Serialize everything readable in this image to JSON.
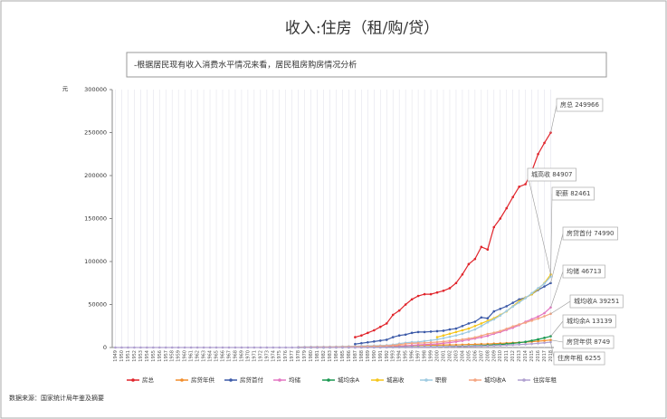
{
  "chart_data": {
    "type": "line",
    "title": "收入:住房（租/购/贷）",
    "subtitle": "-根据居民现有收入消费水平情况来看，居民租房购房情况分析",
    "y_label": "元",
    "source": "数据来源：国家统计局年鉴及摘要",
    "ylim": [
      0,
      300000
    ],
    "yticks": [
      0,
      50000,
      100000,
      150000,
      200000,
      250000,
      300000
    ],
    "categories": [
      "1949",
      "1950",
      "1951",
      "1952",
      "1953",
      "1954",
      "1955",
      "1956",
      "1957",
      "1958",
      "1959",
      "1960",
      "1961",
      "1962",
      "1963",
      "1964",
      "1965",
      "1966",
      "1967",
      "1968",
      "1969",
      "1970",
      "1971",
      "1972",
      "1973",
      "1974",
      "1975",
      "1976",
      "1977",
      "1978",
      "1979",
      "1980",
      "1981",
      "1982",
      "1983",
      "1984",
      "1985",
      "1986",
      "1987",
      "1988",
      "1989",
      "1990",
      "1991",
      "1992",
      "1993",
      "1994",
      "1995",
      "1996",
      "1997",
      "1998",
      "1999",
      "2000",
      "2001",
      "2002",
      "2003",
      "2004",
      "2005",
      "2006",
      "2007",
      "2008",
      "2009",
      "2010",
      "2011",
      "2012",
      "2013",
      "2014",
      "2015",
      "2016",
      "2017",
      "2018"
    ],
    "series": [
      {
        "name": "房总",
        "color": "#e0242b",
        "end_label": "房总 249966",
        "values": [
          null,
          null,
          null,
          null,
          null,
          null,
          null,
          null,
          null,
          null,
          null,
          null,
          null,
          null,
          null,
          null,
          null,
          null,
          null,
          null,
          null,
          null,
          null,
          null,
          null,
          null,
          null,
          null,
          null,
          null,
          null,
          null,
          null,
          null,
          null,
          null,
          null,
          null,
          12000,
          14000,
          17000,
          20000,
          24000,
          28000,
          38000,
          43000,
          50000,
          56000,
          60000,
          62000,
          62000,
          64000,
          66000,
          69000,
          75000,
          85000,
          97000,
          103000,
          117000,
          114000,
          140000,
          150000,
          162000,
          175000,
          187000,
          190000,
          205000,
          225000,
          238000,
          249966
        ]
      },
      {
        "name": "房贷年供",
        "color": "#f28e2b",
        "end_label": "房贷年供 8749",
        "values": [
          null,
          null,
          null,
          null,
          null,
          null,
          null,
          null,
          null,
          null,
          null,
          null,
          null,
          null,
          null,
          null,
          null,
          null,
          null,
          null,
          null,
          null,
          null,
          null,
          null,
          null,
          null,
          null,
          null,
          null,
          null,
          null,
          null,
          null,
          null,
          null,
          null,
          null,
          700,
          800,
          900,
          1000,
          1100,
          1300,
          1700,
          1900,
          2100,
          2300,
          2500,
          2600,
          2700,
          2800,
          2900,
          3000,
          3100,
          3300,
          3600,
          3700,
          4000,
          4100,
          4500,
          4800,
          5100,
          5500,
          5900,
          6300,
          6800,
          7400,
          8000,
          8749
        ]
      },
      {
        "name": "房贷首付",
        "color": "#3c5aa8",
        "end_label": "房贷首付 74990",
        "values": [
          null,
          null,
          null,
          null,
          null,
          null,
          null,
          null,
          null,
          null,
          null,
          null,
          null,
          null,
          null,
          null,
          null,
          null,
          null,
          null,
          null,
          null,
          null,
          null,
          null,
          null,
          null,
          null,
          null,
          null,
          null,
          null,
          null,
          null,
          null,
          null,
          null,
          null,
          4000,
          5000,
          6000,
          7000,
          8000,
          9000,
          12000,
          14000,
          15000,
          17000,
          18000,
          18000,
          18500,
          19000,
          19500,
          21000,
          22000,
          25000,
          28000,
          30000,
          35000,
          34000,
          42000,
          45000,
          48000,
          52000,
          56000,
          58000,
          62000,
          67000,
          71000,
          74990
        ]
      },
      {
        "name": "均储",
        "color": "#e377c2",
        "end_label": "均储 46713",
        "values": [
          null,
          null,
          null,
          null,
          null,
          null,
          null,
          null,
          null,
          null,
          null,
          null,
          null,
          null,
          null,
          null,
          null,
          null,
          null,
          null,
          null,
          null,
          null,
          null,
          null,
          null,
          null,
          null,
          null,
          null,
          null,
          null,
          null,
          null,
          null,
          null,
          null,
          null,
          null,
          null,
          null,
          null,
          600,
          800,
          1000,
          1300,
          1800,
          2500,
          3100,
          3500,
          3800,
          4200,
          5000,
          5800,
          6700,
          7800,
          9000,
          10500,
          12000,
          13500,
          16000,
          18000,
          20500,
          23000,
          26000,
          30000,
          33000,
          36000,
          40000,
          46713
        ]
      },
      {
        "name": "城均余A",
        "color": "#1a9850",
        "end_label": "城均余A 13139",
        "values": [
          null,
          null,
          null,
          null,
          null,
          null,
          null,
          null,
          null,
          null,
          null,
          null,
          null,
          null,
          null,
          null,
          null,
          null,
          null,
          null,
          null,
          null,
          null,
          null,
          null,
          null,
          null,
          null,
          null,
          32,
          40,
          50,
          50,
          60,
          60,
          80,
          90,
          110,
          130,
          150,
          170,
          200,
          220,
          270,
          340,
          450,
          540,
          620,
          680,
          750,
          830,
          900,
          1000,
          1150,
          1300,
          1500,
          1700,
          1950,
          2300,
          2700,
          3100,
          3500,
          4100,
          4800,
          5600,
          6600,
          8000,
          9500,
          11200,
          13139
        ]
      },
      {
        "name": "城高收",
        "color": "#f5c518",
        "end_label": "城高收 84907",
        "values": [
          null,
          null,
          null,
          null,
          null,
          null,
          null,
          null,
          null,
          null,
          null,
          null,
          null,
          null,
          null,
          null,
          null,
          null,
          null,
          null,
          null,
          null,
          null,
          null,
          null,
          null,
          null,
          null,
          null,
          null,
          null,
          null,
          null,
          null,
          null,
          null,
          null,
          null,
          null,
          null,
          null,
          null,
          null,
          null,
          null,
          null,
          null,
          null,
          null,
          null,
          null,
          12000,
          14000,
          16000,
          18000,
          20000,
          22000,
          25000,
          28000,
          31000,
          34000,
          38000,
          42000,
          48000,
          54000,
          58000,
          62000,
          68000,
          75000,
          84907
        ]
      },
      {
        "name": "职薪",
        "color": "#9ecae1",
        "end_label": "职薪 82461",
        "values": [
          null,
          null,
          null,
          null,
          null,
          null,
          null,
          null,
          null,
          null,
          null,
          null,
          null,
          null,
          null,
          null,
          null,
          null,
          null,
          null,
          null,
          null,
          null,
          null,
          null,
          null,
          null,
          null,
          null,
          615,
          668,
          762,
          772,
          798,
          826,
          974,
          1148,
          1329,
          1459,
          1747,
          1935,
          2140,
          2340,
          2711,
          3371,
          4538,
          5500,
          6210,
          6470,
          7479,
          8346,
          9371,
          10870,
          12422,
          14040,
          16024,
          18364,
          21001,
          24932,
          29229,
          32736,
          37147,
          42452,
          47593,
          52388,
          57361,
          63241,
          68993,
          74318,
          82461
        ]
      },
      {
        "name": "城均收A",
        "color": "#f4a582",
        "end_label": "城均收A 39251",
        "values": [
          null,
          null,
          null,
          null,
          null,
          null,
          null,
          null,
          null,
          null,
          null,
          null,
          null,
          null,
          null,
          null,
          null,
          null,
          null,
          null,
          null,
          null,
          null,
          null,
          null,
          null,
          null,
          null,
          null,
          343,
          405,
          478,
          500,
          535,
          565,
          652,
          739,
          900,
          1002,
          1180,
          1374,
          1510,
          1700,
          2027,
          2577,
          3496,
          4283,
          4839,
          5160,
          5425,
          5854,
          6280,
          6860,
          7703,
          8472,
          9422,
          10493,
          11759,
          13786,
          15781,
          17175,
          19109,
          21810,
          24565,
          26955,
          28844,
          31195,
          33616,
          36396,
          39251
        ]
      },
      {
        "name": "住房年租",
        "color": "#b0a0d0",
        "end_label": "住房年租 6255",
        "values": [
          0,
          0,
          0,
          0,
          0,
          0,
          0,
          0,
          0,
          0,
          0,
          0,
          0,
          0,
          0,
          0,
          0,
          0,
          0,
          0,
          0,
          0,
          0,
          0,
          0,
          0,
          0,
          0,
          0,
          20,
          22,
          25,
          28,
          30,
          35,
          40,
          45,
          55,
          65,
          80,
          95,
          110,
          130,
          160,
          200,
          260,
          320,
          400,
          480,
          560,
          640,
          730,
          830,
          940,
          1060,
          1200,
          1350,
          1520,
          1700,
          1900,
          2150,
          2400,
          2700,
          3000,
          3400,
          3800,
          4300,
          4900,
          5500,
          6255
        ]
      }
    ]
  }
}
